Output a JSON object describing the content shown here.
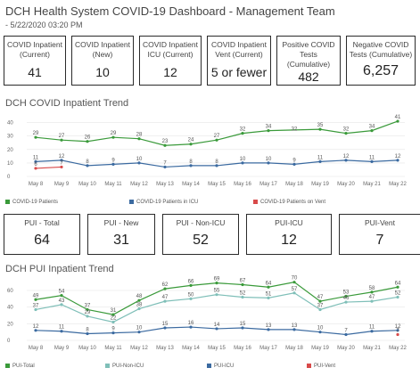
{
  "header": {
    "title": "DCH Health System COVID-19 Dashboard - Management Team",
    "subtitle": "- 5/22/2020 03:20 PM"
  },
  "kpi_top": [
    {
      "label": "COVID Inpatient\n(Current)",
      "value": "41"
    },
    {
      "label": "COVID Inpatient\n(New)",
      "value": "10"
    },
    {
      "label": "COVID Inpatient\nICU (Current)",
      "value": "12"
    },
    {
      "label": "COVID Inpatient\nVent (Current)",
      "value": "5 or fewer"
    },
    {
      "label": "Positive COVID\nTests (Cumulative)",
      "value": "482"
    },
    {
      "label": "Negative COVID\nTests (Cumulative)",
      "value": "6,257"
    }
  ],
  "kpi_pui": [
    {
      "label": "PUI - Total",
      "value": "64"
    },
    {
      "label": "PUI - New",
      "value": "31"
    },
    {
      "label": "PUI - Non-ICU",
      "value": "52"
    },
    {
      "label": "PUI-ICU",
      "value": "12"
    },
    {
      "label": "PUI-Vent",
      "value": "7"
    }
  ],
  "chart_data": [
    {
      "type": "line",
      "title": "DCH COVID Inpatient Trend",
      "categories": [
        "May 8",
        "May 9",
        "May 10",
        "May 11",
        "May 12",
        "May 13",
        "May 14",
        "May 15",
        "May 16",
        "May 17",
        "May 18",
        "May 19",
        "May 20",
        "May 21",
        "May 22"
      ],
      "ylim": [
        0,
        45
      ],
      "yticks": [
        0,
        10,
        20,
        30,
        40
      ],
      "grid": true,
      "legend_position": "bottom",
      "series": [
        {
          "name": "COVID-19 Patients",
          "color": "#3a9a3a",
          "values": [
            29,
            27,
            26,
            29,
            28,
            23,
            24,
            27,
            32,
            34,
            null,
            35,
            32,
            34,
            41
          ],
          "labels": [
            "29",
            "27",
            "26",
            "29",
            "28",
            "23",
            "24",
            "27",
            "32",
            "34",
            "32",
            "35",
            "32",
            "34",
            "41"
          ],
          "label_values": [
            29,
            27,
            26,
            29,
            28,
            23,
            24,
            27,
            32,
            34,
            32,
            35,
            32,
            34,
            41
          ]
        },
        {
          "name": "COVID-19 Patients in ICU",
          "color": "#3b6aa0",
          "values": [
            11,
            12,
            8,
            9,
            10,
            7,
            8,
            8,
            10,
            10,
            9,
            11,
            12,
            11,
            12
          ],
          "labels": [
            "11",
            "12",
            "8",
            "9",
            "10",
            "7",
            "8",
            "8",
            "10",
            "10",
            "9",
            "11",
            "12",
            "11",
            "12"
          ]
        },
        {
          "name": "COVID-19 Patients on Vent",
          "color": "#d84a4a",
          "values": [
            6,
            7,
            null,
            null,
            null,
            null,
            null,
            null,
            null,
            null,
            null,
            null,
            null,
            null,
            null
          ],
          "labels": [
            "6",
            "7",
            "",
            "",
            "",
            "",
            "",
            "",
            "",
            "",
            "",
            "",
            "",
            "",
            ""
          ]
        }
      ]
    },
    {
      "type": "line",
      "title": "DCH PUI Inpatient Trend",
      "categories": [
        "May 8",
        "May 9",
        "May 10",
        "May 11",
        "May 12",
        "May 13",
        "May 14",
        "May 15",
        "May 16",
        "May 17",
        "May 18",
        "May 19",
        "May 20",
        "May 21",
        "May 22"
      ],
      "ylim": [
        0,
        75
      ],
      "yticks": [
        0,
        20,
        40,
        60
      ],
      "grid": true,
      "legend_position": "bottom",
      "series": [
        {
          "name": "PUI-Total",
          "color": "#3a9a3a",
          "values": [
            49,
            54,
            37,
            31,
            48,
            62,
            66,
            69,
            67,
            64,
            70,
            47,
            53,
            58,
            64
          ],
          "labels": [
            "49",
            "54",
            "37",
            "31",
            "48",
            "62",
            "66",
            "69",
            "67",
            "64",
            "70",
            "47",
            "53",
            "58",
            "64"
          ]
        },
        {
          "name": "PUI-Non-ICU",
          "color": "#7fbfb8",
          "values": [
            37,
            43,
            29,
            22,
            38,
            47,
            50,
            55,
            52,
            51,
            57,
            37,
            46,
            47,
            52
          ],
          "labels": [
            "37",
            "43",
            "29",
            "22",
            "38",
            "47",
            "50",
            "55",
            "52",
            "51",
            "57",
            "37",
            "46",
            "47",
            "52"
          ]
        },
        {
          "name": "PUI-ICU",
          "color": "#3b6aa0",
          "values": [
            12,
            11,
            8,
            9,
            10,
            15,
            16,
            14,
            15,
            13,
            13,
            10,
            7,
            11,
            12
          ],
          "labels": [
            "12",
            "11",
            "8",
            "9",
            "10",
            "15",
            "16",
            "14",
            "15",
            "13",
            "13",
            "10",
            "7",
            "11",
            "12"
          ]
        },
        {
          "name": "PUI-Vent",
          "color": "#d84a4a",
          "values": [
            null,
            null,
            null,
            null,
            null,
            null,
            null,
            null,
            null,
            null,
            null,
            null,
            null,
            null,
            7
          ],
          "labels": [
            "",
            "",
            "",
            "",
            "",
            "",
            "",
            "",
            "",
            "",
            "",
            "",
            "",
            "",
            "7"
          ]
        }
      ]
    }
  ]
}
